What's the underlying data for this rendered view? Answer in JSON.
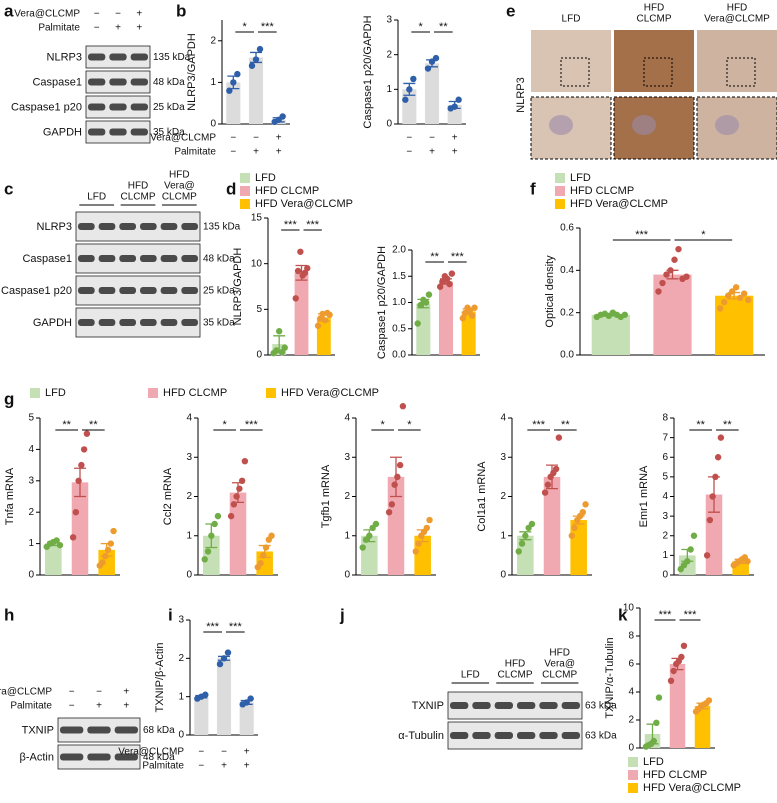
{
  "panel_labels": [
    "a",
    "b",
    "c",
    "d",
    "e",
    "f",
    "g",
    "h",
    "i",
    "j",
    "k"
  ],
  "blots": [
    {
      "condition_rows": [
        {
          "label": "Vera@CLCMP",
          "signs": [
            "−",
            "−",
            "+"
          ]
        },
        {
          "label": "Palmitate",
          "signs": [
            "−",
            "+",
            "+"
          ]
        }
      ],
      "bands": [
        {
          "label": "NLRP3",
          "marker": "135 kDa"
        },
        {
          "label": "Caspase1",
          "marker": "48 kDa"
        },
        {
          "label": "Caspase1 p20",
          "marker": "25 kDa"
        },
        {
          "label": "GAPDH",
          "marker": "35 kDa"
        }
      ]
    },
    {
      "lane_groups": [
        [
          "LFD"
        ],
        [
          "HFD",
          "CLCMP"
        ],
        [
          "HFD",
          "Vera@",
          "CLCMP"
        ]
      ],
      "bands": [
        {
          "label": "NLRP3",
          "marker": "135 kDa"
        },
        {
          "label": "Caspase1",
          "marker": "48 kDa"
        },
        {
          "label": "Caspase1 p20",
          "marker": "25 kDa"
        },
        {
          "label": "GAPDH",
          "marker": "35 kDa"
        }
      ]
    },
    {
      "condition_rows": [
        {
          "label": "Vera@CLCMP",
          "signs": [
            "−",
            "−",
            "+"
          ]
        },
        {
          "label": "Palmitate",
          "signs": [
            "−",
            "+",
            "+"
          ]
        }
      ],
      "bands": [
        {
          "label": "TXNIP",
          "marker": "68 kDa"
        },
        {
          "label": "β-Actin",
          "marker": "48 kDa"
        }
      ]
    },
    {
      "lane_groups": [
        [
          "LFD"
        ],
        [
          "HFD",
          "CLCMP"
        ],
        [
          "HFD",
          "Vera@",
          "CLCMP"
        ]
      ],
      "bands": [
        {
          "label": "TXNIP",
          "marker": "63 kDa"
        },
        {
          "label": "α-Tubulin",
          "marker": "63 kDa"
        }
      ]
    }
  ],
  "images": {
    "columns": [
      [
        "LFD"
      ],
      [
        "HFD",
        "CLCMP"
      ],
      [
        "HFD",
        "Vera@CLCMP"
      ]
    ],
    "row_label": "NLRP3"
  },
  "legends": [
    {
      "items": [
        {
          "name": "LFD",
          "color": "#c5e0b4"
        },
        {
          "name": "HFD CLCMP",
          "color": "#f1a9b1"
        },
        {
          "name": "HFD Vera@CLCMP",
          "color": "#ffc000"
        }
      ]
    },
    {
      "items": [
        {
          "name": "LFD",
          "color": "#c5e0b4"
        },
        {
          "name": "HFD CLCMP",
          "color": "#f1a9b1"
        },
        {
          "name": "HFD Vera@CLCMP",
          "color": "#ffc000"
        }
      ]
    },
    {
      "items": [
        {
          "name": "LFD",
          "color": "#c5e0b4"
        },
        {
          "name": "HFD CLCMP",
          "color": "#f1a9b1"
        },
        {
          "name": "HFD Vera@CLCMP",
          "color": "#ffc000"
        }
      ]
    },
    {
      "items": [
        {
          "name": "LFD",
          "color": "#c5e0b4"
        },
        {
          "name": "HFD CLCMP",
          "color": "#f1a9b1"
        },
        {
          "name": "HFD Vera@CLCMP",
          "color": "#ffc000"
        }
      ]
    }
  ],
  "chart_data": [
    {
      "type": "bar",
      "ylabel": "NLRP3/GAPDH",
      "ylim": [
        0,
        2.5
      ],
      "yticks": [
        0,
        1,
        2
      ],
      "values": [
        1.0,
        1.6,
        0.1
      ],
      "errors": [
        0.15,
        0.12,
        0.05
      ],
      "points": [
        [
          0.8,
          1.0,
          1.2
        ],
        [
          1.4,
          1.55,
          1.8
        ],
        [
          0.05,
          0.1,
          0.18
        ]
      ],
      "colors": [
        "#dcdcdc",
        "#dcdcdc",
        "#dcdcdc"
      ],
      "point_colors": [
        "#2e5fa8",
        "#2e5fa8",
        "#2e5fa8"
      ],
      "significance": [
        "*",
        "***"
      ],
      "condition_rows": [
        {
          "label": "Vera@CLCMP",
          "signs": [
            "−",
            "−",
            "+"
          ]
        },
        {
          "label": "Palmitate",
          "signs": [
            "−",
            "+",
            "+"
          ]
        }
      ]
    },
    {
      "type": "bar",
      "ylabel": "Caspase1 p20/GAPDH",
      "ylim": [
        0,
        3
      ],
      "yticks": [
        0,
        1,
        2,
        3
      ],
      "values": [
        1.0,
        1.75,
        0.55
      ],
      "errors": [
        0.17,
        0.1,
        0.1
      ],
      "points": [
        [
          0.7,
          1.0,
          1.3
        ],
        [
          1.6,
          1.8,
          1.9
        ],
        [
          0.45,
          0.5,
          0.7
        ]
      ],
      "colors": [
        "#dcdcdc",
        "#dcdcdc",
        "#dcdcdc"
      ],
      "point_colors": [
        "#2e5fa8",
        "#2e5fa8",
        "#2e5fa8"
      ],
      "significance": [
        "*",
        "**"
      ],
      "condition_rows": [
        {
          "signs": [
            "−",
            "−",
            "+"
          ]
        },
        {
          "signs": [
            "−",
            "+",
            "+"
          ]
        }
      ]
    },
    {
      "type": "bar",
      "ylabel": "NLRP3/GAPDH",
      "ylim": [
        0,
        15
      ],
      "yticks": [
        0,
        5,
        10,
        15
      ],
      "values": [
        1.2,
        9.0,
        4.1
      ],
      "errors": [
        0.9,
        0.8,
        0.4
      ],
      "points": [
        [
          0.2,
          0.5,
          2.6,
          0.3,
          0.8
        ],
        [
          6.2,
          9.2,
          11.3,
          8.7,
          9.0,
          9.5
        ],
        [
          3.2,
          4.0,
          4.5,
          3.8,
          4.6,
          4.4
        ]
      ],
      "colors": [
        "#c5e0b4",
        "#f1a9b1",
        "#ffc000"
      ],
      "point_colors": [
        "#70ad47",
        "#c0504d",
        "#ed9b2f"
      ],
      "significance": [
        "***",
        "***"
      ]
    },
    {
      "type": "bar",
      "ylabel": "Caspase1 p20/GAPDH",
      "ylim": [
        0,
        2
      ],
      "yticks": [
        {
          "value": 0,
          "label": "0.0"
        },
        {
          "value": 0.5,
          "label": "0.5"
        },
        {
          "value": 1,
          "label": "1.0"
        },
        {
          "value": 1.5,
          "label": "1.5"
        },
        {
          "value": 2,
          "label": "2.0"
        }
      ],
      "values": [
        0.98,
        1.4,
        0.83
      ],
      "errors": [
        0.08,
        0.05,
        0.05
      ],
      "points": [
        [
          0.6,
          0.95,
          1.05,
          1.0,
          1.15
        ],
        [
          1.3,
          1.4,
          1.5,
          1.45,
          1.35,
          1.55
        ],
        [
          0.7,
          0.8,
          0.9,
          0.85,
          0.75,
          0.9
        ]
      ],
      "colors": [
        "#c5e0b4",
        "#f1a9b1",
        "#ffc000"
      ],
      "point_colors": [
        "#70ad47",
        "#c0504d",
        "#ed9b2f"
      ],
      "significance": [
        "**",
        "***"
      ]
    },
    {
      "type": "bar",
      "ylabel": "Optical density",
      "ylim": [
        0,
        0.6
      ],
      "yticks": [
        {
          "value": 0,
          "label": "0.0"
        },
        {
          "value": 0.2,
          "label": "0.2"
        },
        {
          "value": 0.4,
          "label": "0.4"
        },
        {
          "value": 0.6,
          "label": "0.6"
        }
      ],
      "values": [
        0.19,
        0.38,
        0.28
      ],
      "errors": [
        0.005,
        0.02,
        0.015
      ],
      "points": [
        [
          0.18,
          0.19,
          0.195,
          0.185,
          0.2,
          0.19,
          0.18,
          0.19
        ],
        [
          0.3,
          0.34,
          0.38,
          0.4,
          0.45,
          0.5,
          0.36,
          0.37
        ],
        [
          0.22,
          0.25,
          0.28,
          0.3,
          0.32,
          0.27,
          0.29,
          0.26
        ]
      ],
      "colors": [
        "#c5e0b4",
        "#f1a9b1",
        "#ffc000"
      ],
      "point_colors": [
        "#70ad47",
        "#c0504d",
        "#ed9b2f"
      ],
      "significance": [
        "***",
        "*"
      ]
    },
    {
      "type": "bar",
      "ylabel": "Tnfa mRNA",
      "ylim": [
        0,
        5
      ],
      "yticks": [
        0,
        1,
        2,
        3,
        4,
        5
      ],
      "values": [
        1.0,
        2.95,
        0.8
      ],
      "errors": [
        0.06,
        0.45,
        0.2
      ],
      "points": [
        [
          0.9,
          1.0,
          1.05,
          1.1,
          0.95
        ],
        [
          1.2,
          2.0,
          3.0,
          3.5,
          4.0,
          4.5
        ],
        [
          0.3,
          0.4,
          0.6,
          0.8,
          1.0,
          1.4
        ]
      ],
      "colors": [
        "#c5e0b4",
        "#f1a9b1",
        "#ffc000"
      ],
      "point_colors": [
        "#70ad47",
        "#c0504d",
        "#ed9b2f"
      ],
      "significance": [
        "**",
        "**"
      ]
    },
    {
      "type": "bar",
      "ylabel": "Ccl2 mRNA",
      "ylim": [
        0,
        4
      ],
      "yticks": [
        0,
        1,
        2,
        3,
        4
      ],
      "values": [
        1.0,
        2.1,
        0.6
      ],
      "errors": [
        0.3,
        0.25,
        0.15
      ],
      "points": [
        [
          0.4,
          0.6,
          1.0,
          1.3,
          1.5
        ],
        [
          1.5,
          1.8,
          2.0,
          2.2,
          2.4,
          2.9
        ],
        [
          0.2,
          0.3,
          0.5,
          0.7,
          0.9,
          1.0
        ]
      ],
      "colors": [
        "#c5e0b4",
        "#f1a9b1",
        "#ffc000"
      ],
      "point_colors": [
        "#70ad47",
        "#c0504d",
        "#ed9b2f"
      ],
      "significance": [
        "*",
        "***"
      ]
    },
    {
      "type": "bar",
      "ylabel": "Tgfb1 mRNA",
      "ylim": [
        0,
        4
      ],
      "yticks": [
        0,
        1,
        2,
        3,
        4
      ],
      "values": [
        1.0,
        2.5,
        1.0
      ],
      "errors": [
        0.15,
        0.5,
        0.15
      ],
      "points": [
        [
          0.7,
          0.9,
          1.0,
          1.2,
          1.3
        ],
        [
          1.6,
          1.8,
          2.3,
          2.5,
          2.8,
          4.3
        ],
        [
          0.6,
          0.8,
          1.0,
          1.1,
          1.2,
          1.4
        ]
      ],
      "colors": [
        "#c5e0b4",
        "#f1a9b1",
        "#ffc000"
      ],
      "point_colors": [
        "#70ad47",
        "#c0504d",
        "#ed9b2f"
      ],
      "significance": [
        "*",
        "*"
      ]
    },
    {
      "type": "bar",
      "ylabel": "Col1a1 mRNA",
      "ylim": [
        0,
        4
      ],
      "yticks": [
        0,
        1,
        2,
        3,
        4
      ],
      "values": [
        1.0,
        2.5,
        1.4
      ],
      "errors": [
        0.1,
        0.3,
        0.1
      ],
      "points": [
        [
          0.6,
          0.8,
          1.0,
          1.2,
          1.3
        ],
        [
          2.1,
          2.3,
          2.5,
          2.6,
          2.7,
          3.5
        ],
        [
          1.0,
          1.2,
          1.4,
          1.5,
          1.6,
          1.8
        ]
      ],
      "colors": [
        "#c5e0b4",
        "#f1a9b1",
        "#ffc000"
      ],
      "point_colors": [
        "#70ad47",
        "#c0504d",
        "#ed9b2f"
      ],
      "significance": [
        "***",
        "**"
      ]
    },
    {
      "type": "bar",
      "ylabel": "Emr1 mRNA",
      "ylim": [
        0,
        8
      ],
      "yticks": [
        0,
        1,
        2,
        3,
        4,
        5,
        6,
        7,
        8
      ],
      "values": [
        1.0,
        4.1,
        0.7
      ],
      "errors": [
        0.3,
        0.9,
        0.1
      ],
      "points": [
        [
          0.3,
          0.5,
          0.7,
          1.3,
          2.0
        ],
        [
          1.0,
          2.8,
          4.0,
          5.0,
          6.0,
          7.0
        ],
        [
          0.5,
          0.6,
          0.7,
          0.8,
          0.9,
          0.7
        ]
      ],
      "colors": [
        "#c5e0b4",
        "#f1a9b1",
        "#ffc000"
      ],
      "point_colors": [
        "#70ad47",
        "#c0504d",
        "#ed9b2f"
      ],
      "significance": [
        "**",
        "**"
      ]
    },
    {
      "type": "bar",
      "ylabel": "TXNIP/β-Actin",
      "ylim": [
        0,
        3
      ],
      "yticks": [
        0,
        1,
        2,
        3
      ],
      "values": [
        1.0,
        2.0,
        0.85
      ],
      "errors": [
        0.03,
        0.05,
        0.05
      ],
      "points": [
        [
          0.95,
          1.0,
          1.05
        ],
        [
          1.85,
          2.0,
          2.15
        ],
        [
          0.8,
          0.85,
          0.95
        ]
      ],
      "colors": [
        "#dcdcdc",
        "#dcdcdc",
        "#dcdcdc"
      ],
      "point_colors": [
        "#2e5fa8",
        "#2e5fa8",
        "#2e5fa8"
      ],
      "significance": [
        "***",
        "***"
      ],
      "condition_rows": [
        {
          "label": "Vera@CLCMP",
          "signs": [
            "−",
            "−",
            "+"
          ]
        },
        {
          "label": "Palmitate",
          "signs": [
            "−",
            "+",
            "+"
          ]
        }
      ]
    },
    {
      "type": "bar",
      "ylabel": "TXNIP/α-Tubulin",
      "ylim": [
        0,
        10
      ],
      "yticks": [
        0,
        2,
        4,
        6,
        8,
        10
      ],
      "values": [
        1.0,
        6.0,
        3.0
      ],
      "errors": [
        0.7,
        0.4,
        0.2
      ],
      "points": [
        [
          0.1,
          0.2,
          0.3,
          0.5,
          1.8,
          3.6
        ],
        [
          4.8,
          5.5,
          6.0,
          6.2,
          6.5,
          7.3
        ],
        [
          2.6,
          2.8,
          3.0,
          3.1,
          3.2,
          3.4
        ]
      ],
      "colors": [
        "#c5e0b4",
        "#f1a9b1",
        "#ffc000"
      ],
      "point_colors": [
        "#70ad47",
        "#c0504d",
        "#ed9b2f"
      ],
      "significance": [
        "***",
        "***"
      ]
    }
  ]
}
